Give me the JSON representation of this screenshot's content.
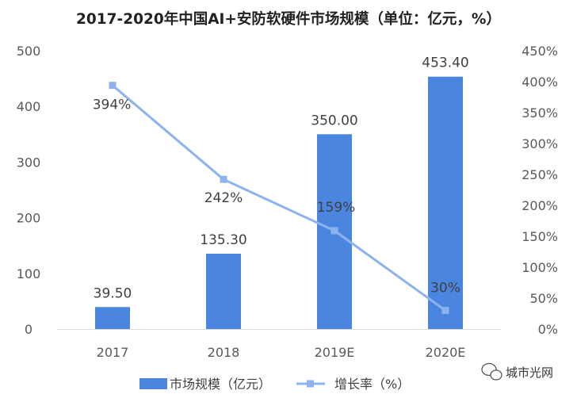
{
  "chart_data": {
    "type": "bar",
    "title": "2017-2020年中国AI+安防软硬件市场规模（单位：亿元，%）",
    "categories": [
      "2017",
      "2018",
      "2019E",
      "2020E"
    ],
    "series": [
      {
        "name": "市场规模（亿元）",
        "type": "bar",
        "axis": "left",
        "values": [
          39.5,
          135.3,
          350.0,
          453.4
        ],
        "labels": [
          "39.50",
          "135.30",
          "350.00",
          "453.40"
        ],
        "color": "#4A86E0"
      },
      {
        "name": "增长率（%）",
        "type": "line",
        "axis": "right",
        "values": [
          394,
          242,
          159,
          30
        ],
        "labels": [
          "394%",
          "242%",
          "159%",
          "30%"
        ],
        "color": "#8DB3EE"
      }
    ],
    "y_left": {
      "min": 0,
      "max": 500,
      "ticks": [
        0,
        100,
        200,
        300,
        400,
        500
      ],
      "tick_labels": [
        "0",
        "100",
        "200",
        "300",
        "400",
        "500"
      ]
    },
    "y_right": {
      "min": 0,
      "max": 450,
      "ticks": [
        0,
        50,
        100,
        150,
        200,
        250,
        300,
        350,
        400,
        450
      ],
      "tick_labels": [
        "0%",
        "50%",
        "100%",
        "150%",
        "200%",
        "250%",
        "300%",
        "350%",
        "400%",
        "450%"
      ]
    },
    "grid": false,
    "legend_position": "bottom"
  },
  "watermark": {
    "text": "城市光网",
    "icon": "wechat-icon"
  }
}
